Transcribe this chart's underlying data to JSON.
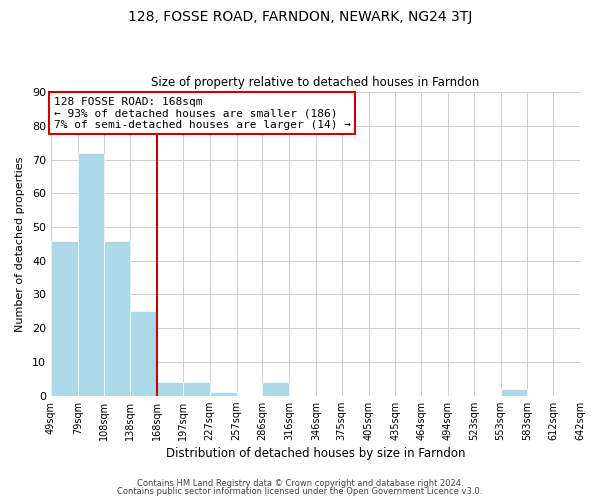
{
  "title": "128, FOSSE ROAD, FARNDON, NEWARK, NG24 3TJ",
  "subtitle": "Size of property relative to detached houses in Farndon",
  "xlabel": "Distribution of detached houses by size in Farndon",
  "ylabel": "Number of detached properties",
  "footer_lines": [
    "Contains HM Land Registry data © Crown copyright and database right 2024.",
    "Contains public sector information licensed under the Open Government Licence v3.0."
  ],
  "bins": [
    49,
    79,
    108,
    138,
    168,
    197,
    227,
    257,
    286,
    316,
    346,
    375,
    405,
    435,
    464,
    494,
    523,
    553,
    583,
    612,
    642
  ],
  "counts": [
    46,
    72,
    46,
    25,
    4,
    4,
    1,
    0,
    4,
    0,
    0,
    0,
    0,
    0,
    0,
    0,
    0,
    2,
    0,
    0
  ],
  "bar_color": "#add8e6",
  "vline_x": 168,
  "vline_color": "#cc0000",
  "annotation_line1": "128 FOSSE ROAD: 168sqm",
  "annotation_line2": "← 93% of detached houses are smaller (186)",
  "annotation_line3": "7% of semi-detached houses are larger (14) →",
  "ylim": [
    0,
    90
  ],
  "yticks": [
    0,
    10,
    20,
    30,
    40,
    50,
    60,
    70,
    80,
    90
  ],
  "background_color": "#ffffff",
  "grid_color": "#d0d0d0",
  "tick_labels": [
    "49sqm",
    "79sqm",
    "108sqm",
    "138sqm",
    "168sqm",
    "197sqm",
    "227sqm",
    "257sqm",
    "286sqm",
    "316sqm",
    "346sqm",
    "375sqm",
    "405sqm",
    "435sqm",
    "464sqm",
    "494sqm",
    "523sqm",
    "553sqm",
    "583sqm",
    "612sqm",
    "642sqm"
  ]
}
